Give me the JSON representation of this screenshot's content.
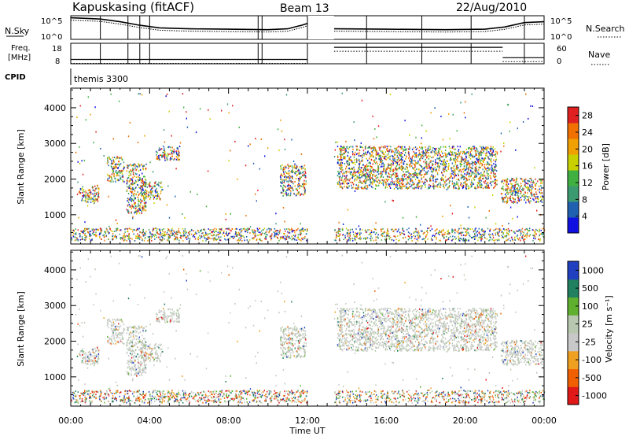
{
  "header": {
    "station": "Kapuskasing (fitACF)",
    "beam": "Beam 13",
    "date": "22/Aug/2010"
  },
  "side_labels": {
    "nsky": "N.Sky",
    "nsearch": "N.Search",
    "freq_line1": "Freq.",
    "freq_line2": "[MHz]",
    "nave": "Nave",
    "cpid": "CPID",
    "cpid_value": "themis 3300",
    "nsky_ticks": [
      "10^5",
      "10^0"
    ],
    "nsearch_ticks": [
      "10^5",
      "10^0"
    ],
    "freq_ticks": [
      "18",
      "8"
    ],
    "nave_ticks": [
      "60",
      "0"
    ]
  },
  "chart_data": [
    {
      "type": "heatmap",
      "title": "Power",
      "xlabel": "Time UT",
      "ylabel": "Slant Range [km]",
      "x_ticks": [
        "00:00",
        "04:00",
        "08:00",
        "12:00",
        "16:00",
        "20:00",
        "00:00"
      ],
      "x_range_hours": [
        0,
        24
      ],
      "y_ticks": [
        1000,
        2000,
        3000,
        4000
      ],
      "y_range_km": [
        180,
        4550
      ],
      "colorbar": {
        "label": "Power [dB]",
        "ticks": [
          4,
          8,
          12,
          16,
          20,
          24,
          28
        ],
        "range": [
          0,
          30
        ],
        "colors": [
          "#1010e0",
          "#2060b0",
          "#3c9a70",
          "#40b040",
          "#c8d000",
          "#f0a000",
          "#f07000",
          "#e02020"
        ]
      },
      "data_gap_hours": [
        12.0,
        13.35
      ],
      "echo_regions": [
        {
          "t": [
            0.4,
            1.4
          ],
          "r": [
            1300,
            1800
          ]
        },
        {
          "t": [
            1.8,
            2.7
          ],
          "r": [
            1900,
            2600
          ]
        },
        {
          "t": [
            2.8,
            3.8
          ],
          "r": [
            1000,
            2400
          ]
        },
        {
          "t": [
            3.6,
            4.6
          ],
          "r": [
            1400,
            1900
          ]
        },
        {
          "t": [
            4.3,
            5.5
          ],
          "r": [
            2500,
            2900
          ]
        },
        {
          "t": [
            10.6,
            11.9
          ],
          "r": [
            1500,
            2400
          ]
        },
        {
          "t": [
            13.5,
            21.6
          ],
          "r": [
            1700,
            2900
          ]
        },
        {
          "t": [
            21.8,
            23.9
          ],
          "r": [
            1300,
            2000
          ]
        }
      ],
      "near_range_clutter_km": [
        250,
        600
      ]
    },
    {
      "type": "heatmap",
      "title": "Velocity",
      "xlabel": "Time UT",
      "ylabel": "Slant Range [km]",
      "x_ticks": [
        "00:00",
        "04:00",
        "08:00",
        "12:00",
        "16:00",
        "20:00",
        "00:00"
      ],
      "x_range_hours": [
        0,
        24
      ],
      "y_ticks": [
        1000,
        2000,
        3000,
        4000
      ],
      "y_range_km": [
        180,
        4550
      ],
      "colorbar": {
        "label": "Velocity [m s⁻¹]",
        "ticks": [
          1000,
          500,
          100,
          25,
          -25,
          -100,
          -500,
          -1000
        ],
        "colors": [
          "#2040c0",
          "#208060",
          "#60b030",
          "#b8c8b0",
          "#c8c8c8",
          "#f0a020",
          "#f06000",
          "#e01818"
        ]
      },
      "data_gap_hours": [
        12.0,
        13.35
      ],
      "dominant_value": "ground scatter (grey)"
    }
  ],
  "top_panels": {
    "nsky_trace": [
      [
        0,
        4.9
      ],
      [
        0.5,
        4.8
      ],
      [
        1.5,
        4.6
      ],
      [
        2.5,
        4.0
      ],
      [
        3.5,
        3.2
      ],
      [
        4.5,
        2.6
      ],
      [
        6,
        2.4
      ],
      [
        8,
        2.3
      ],
      [
        10,
        2.2
      ],
      [
        11,
        2.4
      ],
      [
        11.7,
        3.2
      ],
      [
        12,
        3.6
      ],
      [
        13.35,
        2.4
      ],
      [
        16,
        2.3
      ],
      [
        19,
        2.2
      ],
      [
        21,
        2.3
      ],
      [
        22,
        2.8
      ],
      [
        23,
        3.8
      ],
      [
        24,
        4.0
      ]
    ],
    "freq_segments": [
      [
        0,
        12.0,
        10.5
      ],
      [
        13.35,
        21.9,
        17.5
      ],
      [
        21.9,
        24,
        11.5
      ]
    ],
    "scan_markers": [
      1.5,
      2.9,
      3.5,
      4.0,
      9.5,
      9.7,
      12.0,
      15.0,
      17.8,
      20.3,
      23.0
    ]
  }
}
